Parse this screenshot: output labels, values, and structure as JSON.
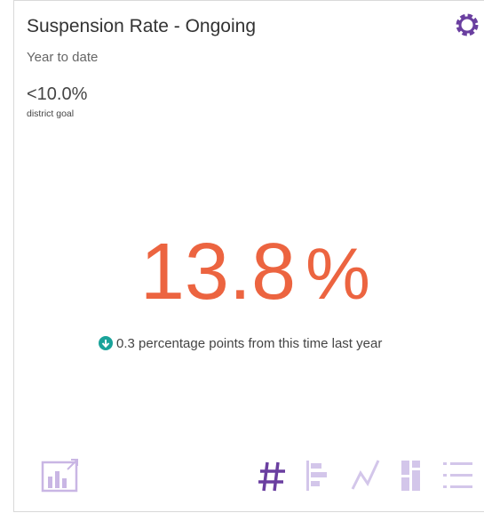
{
  "card": {
    "title": "Suspension Rate - Ongoing",
    "period": "Year to date",
    "goal": "<10.0%",
    "goal_label": "district goal",
    "value": "13.8",
    "unit": "%",
    "change": "0.3 percentage points from this time last year"
  }
}
